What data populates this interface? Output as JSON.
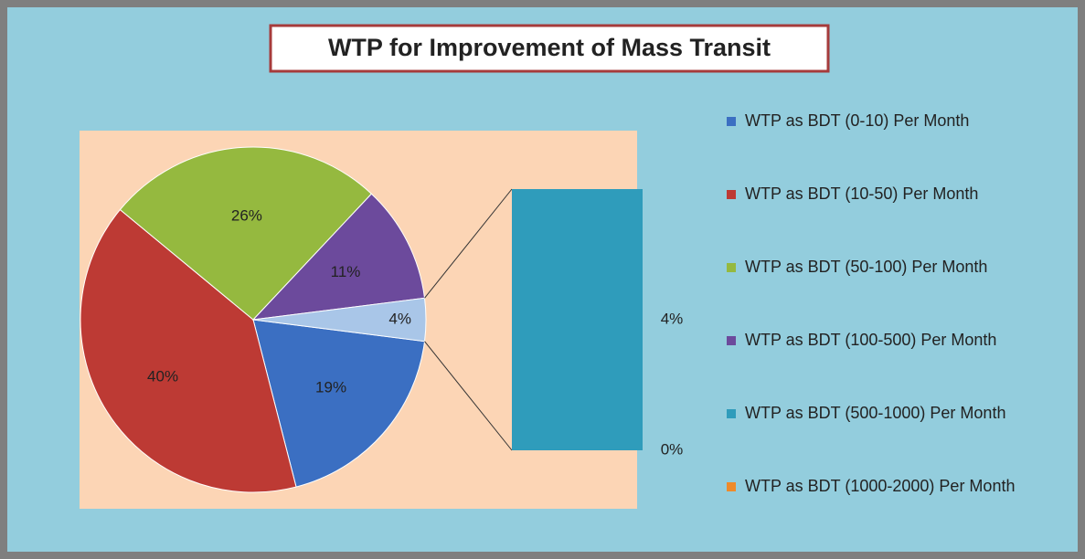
{
  "chart_data": {
    "type": "pie_of_bar",
    "title": "WTP for Improvement of Mass Transit",
    "categories": [
      "WTP as BDT (0-10) Per Month",
      "WTP as BDT (10-50) Per Month",
      "WTP as BDT (50-100) Per Month",
      "WTP as BDT (100-500) Per Month",
      "WTP as BDT (500-1000) Per Month",
      "WTP as BDT (1000-2000) Per Month"
    ],
    "values": [
      19,
      40,
      26,
      11,
      4,
      0
    ],
    "value_labels": [
      "19%",
      "40%",
      "26%",
      "11%",
      "4%",
      "0%"
    ],
    "colors": [
      "#3b6fc2",
      "#bd3a34",
      "#95b93f",
      "#6c4a9c",
      "#2f9cbb",
      "#ee8a2a"
    ],
    "bar_count": 2,
    "other_value": 4,
    "other_label": "4%",
    "other_color": "#a9c6e8",
    "legend": "right"
  }
}
